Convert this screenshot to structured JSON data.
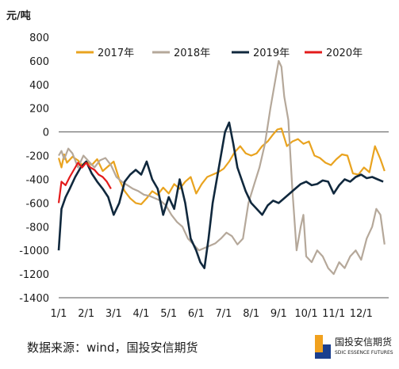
{
  "chart_data": {
    "type": "line",
    "unit_label": "元/吨",
    "ylim": [
      -1400,
      800
    ],
    "yticks": [
      800,
      600,
      400,
      200,
      0,
      -200,
      -400,
      -600,
      -800,
      -1000,
      -1200,
      -1400
    ],
    "xticks": [
      "1/1",
      "2/1",
      "3/1",
      "4/1",
      "5/1",
      "6/1",
      "7/1",
      "8/1",
      "9/1",
      "10/1",
      "11/1",
      "12/1"
    ],
    "legend_position": "top",
    "series": [
      {
        "name": "2017年",
        "color": "#E9A31F",
        "x": [
          1.0,
          1.1,
          1.2,
          1.3,
          1.5,
          1.7,
          1.85,
          2.0,
          2.2,
          2.4,
          2.6,
          2.8,
          3.0,
          3.2,
          3.4,
          3.6,
          3.8,
          4.0,
          4.2,
          4.4,
          4.6,
          4.8,
          5.0,
          5.2,
          5.4,
          5.6,
          5.8,
          6.0,
          6.2,
          6.4,
          6.6,
          6.8,
          7.0,
          7.2,
          7.4,
          7.6,
          7.8,
          8.0,
          8.2,
          8.4,
          8.6,
          8.8,
          8.95,
          9.1,
          9.3,
          9.5,
          9.7,
          9.9,
          10.1,
          10.3,
          10.5,
          10.7,
          10.9,
          11.1,
          11.3,
          11.5,
          11.7,
          11.9,
          12.1,
          12.3,
          12.5,
          12.7,
          12.85
        ],
        "y": [
          -220,
          -300,
          -190,
          -260,
          -210,
          -240,
          -280,
          -250,
          -280,
          -230,
          -330,
          -290,
          -250,
          -400,
          -500,
          -560,
          -600,
          -610,
          -560,
          -500,
          -530,
          -470,
          -520,
          -440,
          -480,
          -420,
          -380,
          -520,
          -440,
          -380,
          -360,
          -340,
          -310,
          -250,
          -170,
          -120,
          -180,
          -200,
          -180,
          -120,
          -80,
          -20,
          20,
          30,
          -120,
          -80,
          -60,
          -100,
          -80,
          -200,
          -220,
          -260,
          -280,
          -230,
          -190,
          -200,
          -350,
          -360,
          -300,
          -340,
          -120,
          -230,
          -330
        ]
      },
      {
        "name": "2018年",
        "color": "#B5A89A",
        "x": [
          1.0,
          1.1,
          1.2,
          1.35,
          1.5,
          1.7,
          1.9,
          2.1,
          2.3,
          2.5,
          2.7,
          2.9,
          3.1,
          3.3,
          3.5,
          3.7,
          3.9,
          4.1,
          4.3,
          4.5,
          4.7,
          4.9,
          5.1,
          5.3,
          5.5,
          5.7,
          5.9,
          6.1,
          6.3,
          6.5,
          6.7,
          6.9,
          7.1,
          7.3,
          7.5,
          7.7,
          7.9,
          8.1,
          8.3,
          8.5,
          8.7,
          8.85,
          9.0,
          9.1,
          9.2,
          9.35,
          9.5,
          9.65,
          9.8,
          9.9,
          10.0,
          10.2,
          10.4,
          10.6,
          10.8,
          11.0,
          11.2,
          11.4,
          11.6,
          11.8,
          12.0,
          12.2,
          12.4,
          12.55,
          12.7,
          12.85
        ],
        "y": [
          -200,
          -160,
          -230,
          -140,
          -180,
          -300,
          -200,
          -250,
          -300,
          -240,
          -220,
          -280,
          -380,
          -420,
          -450,
          -480,
          -500,
          -530,
          -540,
          -560,
          -580,
          -620,
          -700,
          -760,
          -800,
          -900,
          -950,
          -1000,
          -980,
          -960,
          -940,
          -900,
          -850,
          -880,
          -950,
          -900,
          -600,
          -450,
          -300,
          -100,
          200,
          400,
          600,
          550,
          300,
          100,
          -500,
          -1000,
          -800,
          -700,
          -1050,
          -1100,
          -1000,
          -1050,
          -1150,
          -1200,
          -1100,
          -1150,
          -1050,
          -1000,
          -1080,
          -900,
          -800,
          -650,
          -700,
          -950
        ]
      },
      {
        "name": "2019年",
        "color": "#10283D",
        "x": [
          1.0,
          1.1,
          1.25,
          1.4,
          1.6,
          1.8,
          2.0,
          2.2,
          2.4,
          2.6,
          2.8,
          3.0,
          3.2,
          3.4,
          3.6,
          3.8,
          4.0,
          4.2,
          4.4,
          4.6,
          4.8,
          5.0,
          5.2,
          5.4,
          5.6,
          5.8,
          6.0,
          6.15,
          6.3,
          6.45,
          6.6,
          6.75,
          6.9,
          7.05,
          7.2,
          7.35,
          7.5,
          7.65,
          7.8,
          8.0,
          8.2,
          8.4,
          8.6,
          8.8,
          9.0,
          9.2,
          9.4,
          9.6,
          9.8,
          10.0,
          10.2,
          10.4,
          10.6,
          10.8,
          11.0,
          11.2,
          11.4,
          11.6,
          11.8,
          12.0,
          12.2,
          12.4,
          12.6,
          12.8
        ],
        "y": [
          -1000,
          -650,
          -550,
          -480,
          -380,
          -300,
          -250,
          -350,
          -420,
          -480,
          -550,
          -700,
          -600,
          -420,
          -360,
          -320,
          -360,
          -250,
          -400,
          -480,
          -700,
          -550,
          -650,
          -400,
          -600,
          -900,
          -1000,
          -1100,
          -1150,
          -900,
          -600,
          -400,
          -200,
          0,
          80,
          -100,
          -300,
          -400,
          -500,
          -600,
          -650,
          -700,
          -620,
          -580,
          -600,
          -560,
          -520,
          -480,
          -440,
          -420,
          -450,
          -440,
          -410,
          -420,
          -520,
          -450,
          -400,
          -420,
          -380,
          -360,
          -390,
          -380,
          -400,
          -420
        ]
      },
      {
        "name": "2020年",
        "color": "#E31B1B",
        "x": [
          1.0,
          1.1,
          1.25,
          1.4,
          1.55,
          1.7,
          1.85,
          2.0,
          2.15,
          2.3,
          2.45,
          2.6,
          2.75,
          2.9
        ],
        "y": [
          -600,
          -420,
          -450,
          -380,
          -320,
          -260,
          -300,
          -260,
          -300,
          -320,
          -360,
          -380,
          -420,
          -480
        ]
      }
    ]
  }
}
